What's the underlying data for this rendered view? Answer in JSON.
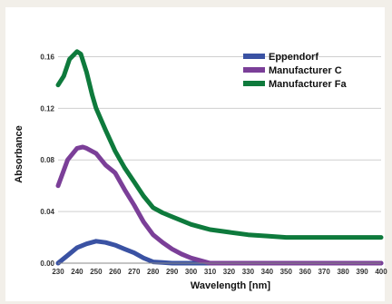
{
  "chart_data": {
    "type": "line",
    "title": "",
    "xlabel": "Wavelength [nm]",
    "ylabel": "Absorbance",
    "xlim": [
      230,
      400
    ],
    "ylim": [
      0,
      0.18
    ],
    "x_ticks": [
      "230",
      "240",
      "250",
      "260",
      "270",
      "280",
      "290",
      "300",
      "310",
      "320",
      "330",
      "340",
      "350",
      "360",
      "370",
      "380",
      "390",
      "400"
    ],
    "y_ticks": [
      "0.00",
      "0.04",
      "0.08",
      "0.12",
      "0.16"
    ],
    "grid": true,
    "legend_position": "top-right",
    "series": [
      {
        "name": "Eppendorf",
        "color": "#3a52a3",
        "x": [
          230,
          235,
          240,
          245,
          250,
          255,
          260,
          265,
          270,
          275,
          280,
          285,
          290,
          300,
          310,
          320,
          330,
          340,
          350,
          360,
          370,
          380,
          390,
          400
        ],
        "y": [
          0.0,
          0.006,
          0.012,
          0.015,
          0.017,
          0.016,
          0.014,
          0.011,
          0.008,
          0.004,
          0.001,
          0.0005,
          0.0,
          0.0,
          0.0,
          0.0,
          0.0,
          0.0,
          0.0,
          0.0,
          0.0,
          0.0,
          0.0,
          0.0
        ]
      },
      {
        "name": "Manufacturer C",
        "color": "#7b3f98",
        "x": [
          230,
          235,
          240,
          243,
          245,
          250,
          255,
          260,
          265,
          270,
          275,
          280,
          285,
          290,
          295,
          300,
          305,
          310,
          320,
          330,
          340,
          350,
          360,
          370,
          380,
          390,
          400
        ],
        "y": [
          0.06,
          0.08,
          0.089,
          0.09,
          0.089,
          0.085,
          0.076,
          0.07,
          0.057,
          0.045,
          0.032,
          0.022,
          0.016,
          0.011,
          0.007,
          0.004,
          0.002,
          0.0,
          0.0,
          0.0,
          0.0,
          0.0,
          0.0,
          0.0,
          0.0,
          0.0,
          0.0
        ]
      },
      {
        "name": "Manufacturer Fa",
        "color": "#0e7a3c",
        "x": [
          230,
          233,
          236,
          240,
          242,
          245,
          248,
          250,
          255,
          260,
          265,
          270,
          275,
          280,
          285,
          290,
          295,
          300,
          305,
          310,
          320,
          330,
          340,
          350,
          360,
          370,
          380,
          390,
          400
        ],
        "y": [
          0.138,
          0.145,
          0.158,
          0.164,
          0.162,
          0.148,
          0.13,
          0.12,
          0.103,
          0.087,
          0.074,
          0.063,
          0.052,
          0.043,
          0.039,
          0.036,
          0.033,
          0.03,
          0.028,
          0.026,
          0.024,
          0.022,
          0.021,
          0.02,
          0.02,
          0.02,
          0.02,
          0.02,
          0.02
        ]
      }
    ]
  }
}
